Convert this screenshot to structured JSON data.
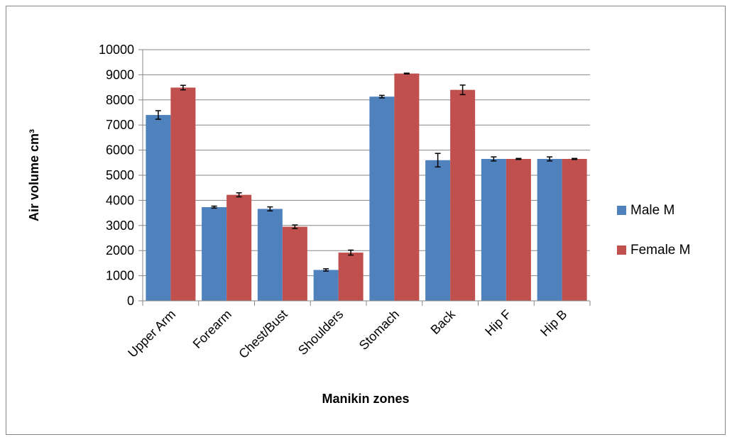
{
  "chart_data": {
    "type": "bar",
    "xlabel": "Manikin zones",
    "ylabel": "Air volume cm³",
    "ylim": [
      0,
      10000
    ],
    "yticks": [
      0,
      1000,
      2000,
      3000,
      4000,
      5000,
      6000,
      7000,
      8000,
      9000,
      10000
    ],
    "grid": true,
    "legend_position": "right",
    "categories": [
      "Upper Arm",
      "Forearm",
      "Chest/Bust",
      "Shoulders",
      "Stomach",
      "Back",
      "Hip F",
      "Hip B"
    ],
    "series": [
      {
        "name": "Male M",
        "color": "#4f81bd",
        "values": [
          7400,
          3730,
          3660,
          1230,
          8130,
          5600,
          5650,
          5650
        ],
        "errors": [
          170,
          40,
          80,
          45,
          50,
          270,
          80,
          80
        ]
      },
      {
        "name": "Female M",
        "color": "#c0504d",
        "values": [
          8490,
          4220,
          2950,
          1920,
          9050,
          8400,
          5650,
          5650
        ],
        "errors": [
          90,
          80,
          70,
          100,
          15,
          190,
          20,
          20
        ]
      }
    ]
  }
}
